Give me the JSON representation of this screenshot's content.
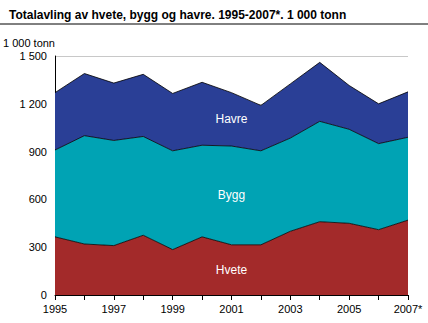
{
  "chart_data": {
    "type": "area",
    "title": "Totalavling av hvete, bygg og havre. 1995-2007*. 1 000 tonn",
    "y_label": "1 000 tonn",
    "categories": [
      "1995",
      null,
      "1997",
      null,
      "1999",
      null,
      "2001",
      null,
      "2003",
      null,
      "2005",
      null,
      "2007*"
    ],
    "series": [
      {
        "name": "Hvete",
        "color": "#a32a2a",
        "values": [
          365,
          320,
          310,
          375,
          285,
          365,
          315,
          315,
          400,
          460,
          450,
          410,
          470
        ]
      },
      {
        "name": "Bygg",
        "color": "#00a3b4",
        "values": [
          545,
          680,
          660,
          620,
          620,
          575,
          620,
          590,
          585,
          630,
          590,
          540,
          520
        ]
      },
      {
        "name": "Havre",
        "color": "#2a3f96",
        "values": [
          360,
          390,
          360,
          390,
          360,
          395,
          335,
          285,
          340,
          370,
          275,
          250,
          285
        ]
      }
    ],
    "ylim": [
      0,
      1500
    ],
    "yticks": [
      0,
      300,
      600,
      900,
      {
        "value": 1200,
        "label": "1 200"
      },
      {
        "value": 1500,
        "label": "1 500"
      }
    ],
    "stacked": true,
    "grid": true
  }
}
